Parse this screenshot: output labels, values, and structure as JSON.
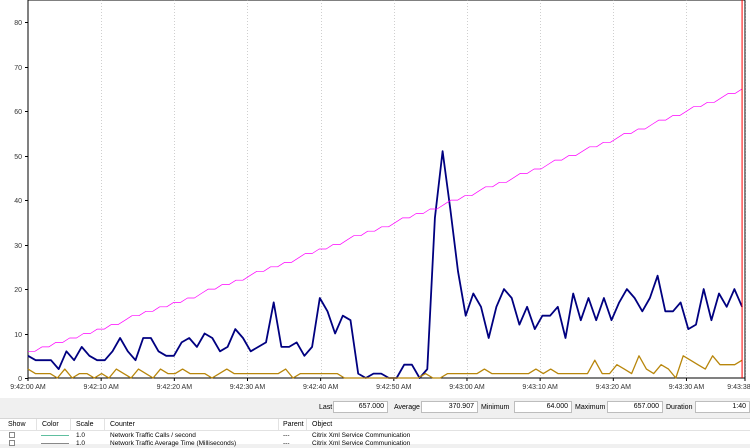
{
  "chart_data": {
    "type": "line",
    "ylim": [
      0,
      85
    ],
    "y_ticks": [
      "0",
      "10",
      "20",
      "30",
      "40",
      "50",
      "60",
      "70",
      "80"
    ],
    "x_ticks": [
      "9:42:00 AM",
      "9:42:10 AM",
      "9:42:20 AM",
      "9:42:30 AM",
      "9:42:40 AM",
      "9:42:50 AM",
      "9:43:00 AM",
      "9:43:10 AM",
      "9:43:20 AM",
      "9:43:30 AM",
      "9:43:38 AM"
    ],
    "x_tick_seconds": [
      0,
      10,
      20,
      30,
      40,
      50,
      60,
      70,
      80,
      90,
      98
    ],
    "x_range_seconds": [
      0,
      98
    ],
    "time_marker_seconds": 97.6,
    "grid": "vertical dotted",
    "series": [
      {
        "color": "#000080",
        "values": [
          5,
          4,
          4,
          4,
          2,
          6,
          4,
          7,
          5,
          4,
          4,
          6,
          9,
          6,
          4,
          9,
          9,
          6,
          5,
          5,
          8,
          9,
          7,
          10,
          9,
          6,
          7,
          11,
          9,
          6,
          7,
          8,
          17,
          7,
          7,
          8,
          5,
          7,
          18,
          15,
          10,
          14,
          13,
          1,
          0,
          1,
          1,
          0,
          0,
          3,
          3,
          0,
          2,
          36,
          51,
          38,
          24,
          14,
          19,
          16,
          9,
          16,
          20,
          18,
          12,
          16,
          11,
          14,
          14,
          16,
          9,
          19,
          13,
          18,
          13,
          18,
          13,
          17,
          20,
          18,
          15,
          18,
          23,
          15,
          15,
          17,
          11,
          12,
          20,
          13,
          19,
          16,
          20,
          16
        ]
      },
      {
        "color": "#b8860b",
        "values": [
          2,
          1,
          1,
          1,
          0,
          2,
          0,
          1,
          1,
          0,
          1,
          0,
          2,
          1,
          0,
          2,
          1,
          0,
          2,
          1,
          1,
          2,
          1,
          1,
          1,
          0,
          1,
          2,
          1,
          1,
          1,
          1,
          1,
          1,
          1,
          2,
          0,
          1,
          1,
          1,
          1,
          1,
          1,
          0,
          0,
          0,
          0,
          0,
          0,
          0,
          0,
          0,
          0,
          0,
          1,
          0,
          0,
          1,
          1,
          1,
          1,
          1,
          2,
          1,
          1,
          1,
          1,
          1,
          1,
          2,
          1,
          2,
          1,
          1,
          1,
          1,
          1,
          4,
          1,
          1,
          3,
          2,
          1,
          5,
          2,
          1,
          3,
          2,
          0,
          5,
          4,
          3,
          2,
          5,
          3,
          3,
          3,
          4
        ]
      },
      {
        "color": "#ff00ff",
        "values": [
          6,
          6,
          7,
          7,
          8,
          8,
          9,
          9,
          10,
          10,
          11,
          11,
          12,
          12,
          13,
          14,
          14,
          15,
          15,
          16,
          16,
          17,
          17,
          18,
          18,
          19,
          20,
          20,
          21,
          21,
          22,
          22,
          23,
          24,
          24,
          25,
          25,
          26,
          26,
          27,
          28,
          28,
          29,
          29,
          30,
          30,
          31,
          32,
          32,
          33,
          33,
          34,
          34,
          35,
          36,
          36,
          37,
          37,
          38,
          38,
          39,
          40,
          40,
          41,
          41,
          42,
          43,
          43,
          44,
          44,
          45,
          46,
          46,
          47,
          47,
          48,
          49,
          49,
          50,
          50,
          51,
          52,
          52,
          53,
          53,
          54,
          55,
          55,
          56,
          56,
          57,
          58,
          58,
          59,
          59,
          60,
          61,
          61,
          62,
          62,
          63,
          64,
          64,
          65
        ]
      }
    ]
  },
  "stats": {
    "last_label": "Last",
    "last_value": "657.000",
    "average_label": "Average",
    "average_value": "370.907",
    "minimum_label": "Minimum",
    "minimum_value": "64.000",
    "maximum_label": "Maximum",
    "maximum_value": "657.000",
    "duration_label": "Duration",
    "duration_value": "1:40"
  },
  "counter_table": {
    "headers": {
      "show": "Show",
      "color": "Color",
      "scale": "Scale",
      "counter": "Counter",
      "parent": "Parent",
      "object": "Object"
    },
    "rows": [
      {
        "swatch_color": "#5fbf9f",
        "scale": "1.0",
        "counter": "Network Traffic  Calls / second",
        "parent": "---",
        "object": "Citrix Xml Service Communication"
      },
      {
        "swatch_color": "#888888",
        "scale": "1.0",
        "counter": "Network Traffic  Average Time (Milliseconds)",
        "parent": "---",
        "object": "Citrix Xml Service Communication"
      }
    ]
  }
}
